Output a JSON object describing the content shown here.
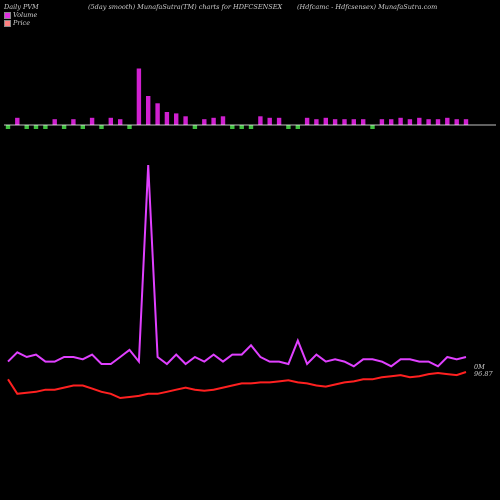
{
  "header": {
    "left": "Daily PVM",
    "mid": "(5day smooth) MunafaSutra(TM) charts for HDFCSENSEX",
    "right": "(Hdfcamc - Hdfcsensex) MunafaSutra.com"
  },
  "legend": [
    {
      "label": "Volume",
      "color": "#e030e0"
    },
    {
      "label": "Price",
      "color": "#ff8080"
    }
  ],
  "colors": {
    "volume_up": "#d020d0",
    "volume_down": "#40c040",
    "volume_line": "#e040ff",
    "price_line": "#ff2020",
    "baseline": "#ffffff"
  },
  "annotations": {
    "volume_value": "0M",
    "price_value": "96.87"
  },
  "chart_data": {
    "type": "bar+line",
    "n_days": 50,
    "volume_bars": [
      0.4,
      0.5,
      0.4,
      0.4,
      0.4,
      0.4,
      0.4,
      0.4,
      0.4,
      0.5,
      0.4,
      0.5,
      0.4,
      0.5,
      3.9,
      2.0,
      1.5,
      0.9,
      0.8,
      0.6,
      0.5,
      0.4,
      0.5,
      0.6,
      0.5,
      0.6,
      0.8,
      0.6,
      0.5,
      0.5,
      0.4,
      0.6,
      0.5,
      0.4,
      0.5,
      0.4,
      0.4,
      0.4,
      0.4,
      0.4,
      0.4,
      0.4,
      0.5,
      0.4,
      0.5,
      0.4,
      0.4,
      0.5,
      0.4,
      0.4
    ],
    "volume_bar_direction": [
      "d",
      "u",
      "d",
      "d",
      "d",
      "u",
      "d",
      "u",
      "d",
      "u",
      "d",
      "u",
      "u",
      "d",
      "u",
      "u",
      "u",
      "u",
      "u",
      "u",
      "d",
      "u",
      "u",
      "u",
      "d",
      "d",
      "d",
      "u",
      "u",
      "u",
      "d",
      "d",
      "u",
      "u",
      "u",
      "u",
      "u",
      "u",
      "u",
      "d",
      "u",
      "u",
      "u",
      "u",
      "u",
      "u",
      "u",
      "u",
      "u",
      "u"
    ],
    "volume_line": [
      0.4,
      0.8,
      0.6,
      0.7,
      0.4,
      0.4,
      0.6,
      0.6,
      0.5,
      0.7,
      0.3,
      0.3,
      0.6,
      0.9,
      0.4,
      8.8,
      0.6,
      0.3,
      0.7,
      0.3,
      0.6,
      0.4,
      0.7,
      0.4,
      0.7,
      0.7,
      1.1,
      0.6,
      0.4,
      0.4,
      0.3,
      1.3,
      0.3,
      0.7,
      0.4,
      0.5,
      0.4,
      0.2,
      0.5,
      0.5,
      0.4,
      0.2,
      0.5,
      0.5,
      0.4,
      0.4,
      0.2,
      0.6,
      0.5,
      0.6
    ],
    "price_line": [
      99.4,
      98.0,
      98.1,
      98.2,
      98.4,
      98.4,
      98.6,
      98.8,
      98.8,
      98.5,
      98.2,
      98.0,
      97.6,
      97.7,
      97.8,
      98.0,
      98.0,
      98.2,
      98.4,
      98.6,
      98.4,
      98.3,
      98.4,
      98.6,
      98.8,
      99.0,
      99.0,
      99.1,
      99.1,
      99.2,
      99.3,
      99.1,
      99.0,
      98.8,
      98.7,
      98.9,
      99.1,
      99.2,
      99.4,
      99.4,
      99.6,
      99.7,
      99.8,
      99.6,
      99.7,
      99.9,
      100.0,
      99.9,
      99.8,
      100.1
    ],
    "title": "",
    "xlabel": "",
    "ylabel": ""
  }
}
